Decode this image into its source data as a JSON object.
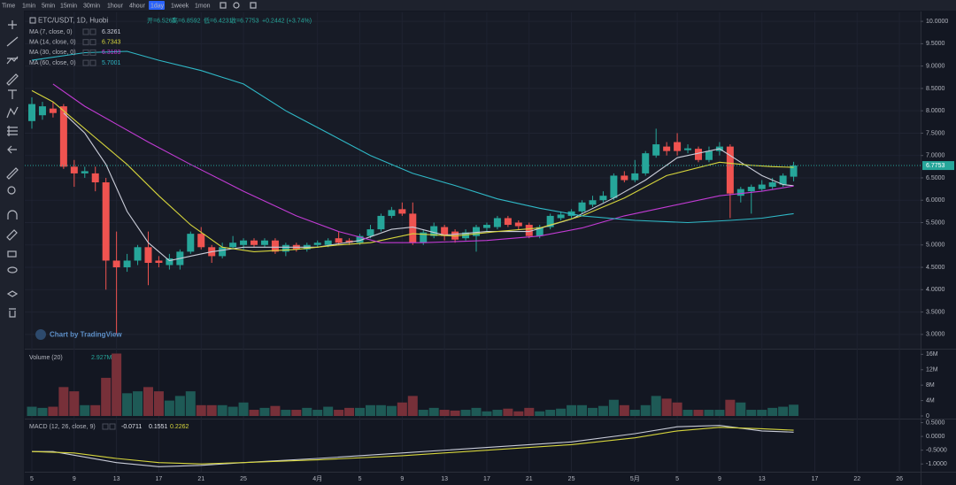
{
  "toolbar": {
    "intervals": [
      "Time",
      "1min",
      "5min",
      "15min",
      "30min",
      "1hour",
      "4hour",
      "1day",
      "1week",
      "1mon"
    ],
    "active": "1day"
  },
  "chart_data": [
    {
      "type": "candlestick",
      "title": "ETC/USDT, 1D, Huobi",
      "ohlc_labels": [
        "开=6.5265",
        "高=6.8592",
        "低=6.4231",
        "收=6.7753"
      ],
      "change_label": "+0.2442 (+3.74%)",
      "watermark": "Chart by TradingView",
      "up_color": "#26a69a",
      "down_color": "#ef5350",
      "open": [
        7.77,
        7.9,
        8.05,
        8.1,
        6.75,
        6.6,
        6.6,
        6.4,
        4.65,
        4.5,
        4.65,
        4.95,
        4.65,
        4.55,
        4.55,
        4.85,
        5.25,
        4.95,
        4.75,
        4.95,
        5.0,
        5.1,
        5.0,
        5.1,
        4.85,
        5.0,
        4.9,
        5.0,
        5.0,
        5.15,
        5.1,
        5.05,
        5.2,
        5.35,
        5.65,
        5.8,
        5.7,
        5.05,
        5.2,
        5.4,
        5.3,
        5.15,
        5.2,
        5.38,
        5.4,
        5.6,
        5.5,
        5.45,
        5.2,
        5.4,
        5.6,
        5.65,
        5.75,
        5.9,
        6.0,
        6.05,
        6.55,
        6.45,
        6.6,
        7.0,
        7.2,
        7.3,
        7.12,
        7.15,
        6.9,
        7.1,
        7.2,
        6.1,
        6.2,
        6.25,
        6.3,
        6.35,
        6.5265
      ],
      "high": [
        8.3,
        8.2,
        8.2,
        8.15,
        6.9,
        6.75,
        6.75,
        6.5,
        5.3,
        4.8,
        5.0,
        5.3,
        4.75,
        4.8,
        4.9,
        5.3,
        5.4,
        5.0,
        5.05,
        5.2,
        5.15,
        5.15,
        5.15,
        5.15,
        5.05,
        5.05,
        5.05,
        5.1,
        5.15,
        5.3,
        5.15,
        5.25,
        5.45,
        5.7,
        5.85,
        5.95,
        5.95,
        5.35,
        5.5,
        5.45,
        5.35,
        5.35,
        5.45,
        5.5,
        5.65,
        5.65,
        5.55,
        5.5,
        5.45,
        5.7,
        5.75,
        5.8,
        6.0,
        6.1,
        6.2,
        6.6,
        6.65,
        6.9,
        7.1,
        7.6,
        7.3,
        7.5,
        7.25,
        7.2,
        7.2,
        7.3,
        7.25,
        6.3,
        6.35,
        6.45,
        6.5,
        6.6,
        6.8592
      ],
      "low": [
        7.6,
        7.8,
        7.85,
        6.7,
        6.3,
        6.5,
        6.2,
        4.0,
        3.0,
        4.4,
        4.55,
        4.1,
        4.5,
        4.45,
        4.45,
        4.8,
        4.9,
        4.6,
        4.7,
        4.9,
        4.9,
        4.95,
        4.95,
        4.8,
        4.75,
        4.85,
        4.85,
        4.95,
        4.95,
        5.0,
        5.0,
        5.0,
        5.15,
        5.3,
        5.6,
        5.65,
        5.0,
        5.0,
        5.15,
        5.1,
        5.05,
        5.1,
        4.85,
        5.3,
        5.35,
        5.4,
        5.35,
        5.15,
        5.15,
        5.35,
        5.55,
        5.6,
        5.7,
        5.85,
        5.95,
        6.0,
        6.4,
        6.4,
        6.55,
        6.95,
        7.0,
        7.0,
        7.05,
        6.85,
        6.85,
        7.0,
        5.6,
        5.95,
        5.7,
        6.2,
        6.25,
        6.3,
        6.4231
      ],
      "close": [
        8.15,
        8.1,
        7.95,
        6.75,
        6.6,
        6.65,
        6.4,
        4.65,
        4.5,
        4.65,
        4.95,
        4.6,
        4.6,
        4.7,
        4.85,
        5.25,
        4.95,
        4.75,
        4.95,
        5.05,
        5.1,
        5.0,
        5.1,
        4.85,
        5.0,
        4.9,
        5.0,
        5.05,
        5.1,
        5.05,
        5.05,
        5.2,
        5.35,
        5.65,
        5.78,
        5.7,
        5.05,
        5.28,
        5.42,
        5.2,
        5.12,
        5.28,
        5.4,
        5.45,
        5.6,
        5.45,
        5.42,
        5.2,
        5.4,
        5.65,
        5.68,
        5.75,
        5.95,
        6.0,
        6.1,
        6.55,
        6.45,
        6.6,
        7.05,
        7.25,
        7.1,
        7.1,
        7.16,
        6.9,
        7.1,
        7.2,
        6.15,
        6.25,
        6.3,
        6.35,
        6.4,
        6.55,
        6.7753
      ],
      "ylim": [
        2.7,
        10.2
      ],
      "yticks": [
        {
          "value": 10,
          "label": "10.0000"
        },
        {
          "value": 9.5,
          "label": "9.5000"
        },
        {
          "value": 9,
          "label": "9.0000"
        },
        {
          "value": 8.5,
          "label": "8.5000"
        },
        {
          "value": 8,
          "label": "8.0000"
        },
        {
          "value": 7.5,
          "label": "7.5000"
        },
        {
          "value": 7,
          "label": "7.0000"
        },
        {
          "value": 6.5,
          "label": "6.5000"
        },
        {
          "value": 6,
          "label": "6.0000"
        },
        {
          "value": 5.5,
          "label": "5.5000"
        },
        {
          "value": 5,
          "label": "5.0000"
        },
        {
          "value": 4.5,
          "label": "4.5000"
        },
        {
          "value": 4,
          "label": "4.0000"
        },
        {
          "value": 3.5,
          "label": "3.5000"
        },
        {
          "value": 3,
          "label": "3.0000"
        }
      ],
      "xlim": [
        -0.67,
        84
      ],
      "xticks": [
        {
          "value": 0,
          "label": "5"
        },
        {
          "value": 4,
          "label": "9"
        },
        {
          "value": 8,
          "label": "13"
        },
        {
          "value": 12,
          "label": "17"
        },
        {
          "value": 16,
          "label": "21"
        },
        {
          "value": 20,
          "label": "25"
        },
        {
          "value": 27,
          "label": "4月"
        },
        {
          "value": 31,
          "label": "5"
        },
        {
          "value": 35,
          "label": "9"
        },
        {
          "value": 39,
          "label": "13"
        },
        {
          "value": 43,
          "label": "17"
        },
        {
          "value": 47,
          "label": "21"
        },
        {
          "value": 51,
          "label": "25"
        },
        {
          "value": 57,
          "label": "5月"
        },
        {
          "value": 61,
          "label": "5"
        },
        {
          "value": 65,
          "label": "9"
        },
        {
          "value": 69,
          "label": "13"
        },
        {
          "value": 74,
          "label": "17"
        },
        {
          "value": 78,
          "label": "22"
        },
        {
          "value": 82,
          "label": "26"
        }
      ],
      "grid": true,
      "ma": [
        {
          "name": "MA (7, close, 0)",
          "color": "#c9ccd8",
          "x": [
            3,
            5,
            7,
            9,
            11,
            13,
            15,
            17,
            20,
            23,
            27,
            31,
            34,
            36,
            39,
            43,
            47,
            51,
            55,
            58,
            61,
            65,
            67,
            69,
            71,
            72
          ],
          "values": [
            7.95,
            7.5,
            6.8,
            5.75,
            5.05,
            4.65,
            4.75,
            4.85,
            4.95,
            4.95,
            4.95,
            5.1,
            5.35,
            5.4,
            5.22,
            5.3,
            5.3,
            5.58,
            6.05,
            6.45,
            6.95,
            7.15,
            6.85,
            6.55,
            6.35,
            6.3261
          ]
        },
        {
          "name": "MA (14, close, 0)",
          "color": "#d6d53c",
          "x": [
            0,
            2,
            4,
            6,
            9,
            12,
            15,
            18,
            21,
            25,
            29,
            32,
            36,
            40,
            44,
            48,
            52,
            56,
            60,
            65,
            68,
            70,
            72
          ],
          "values": [
            8.45,
            8.2,
            7.8,
            7.4,
            6.8,
            6.1,
            5.45,
            4.95,
            4.85,
            4.9,
            5.0,
            5.05,
            5.25,
            5.2,
            5.3,
            5.38,
            5.65,
            6.05,
            6.55,
            6.85,
            6.78,
            6.75,
            6.7343
          ]
        },
        {
          "name": "MA (30, close, 0)",
          "color": "#c23bd4",
          "x": [
            2,
            5,
            8,
            11,
            15,
            20,
            25,
            29,
            33,
            37,
            43,
            48,
            52,
            56,
            60,
            65,
            69,
            72
          ],
          "values": [
            8.6,
            8.1,
            7.7,
            7.3,
            6.8,
            6.2,
            5.65,
            5.3,
            5.05,
            5.05,
            5.1,
            5.2,
            5.38,
            5.65,
            5.85,
            6.1,
            6.2,
            6.3183
          ]
        },
        {
          "name": "MA (60, close, 0)",
          "color": "#2fb8c6",
          "x": [
            0,
            5,
            9,
            12,
            16,
            20,
            24,
            28,
            32,
            36,
            40,
            44,
            48,
            52,
            57,
            62,
            66,
            69,
            72
          ],
          "values": [
            9.13,
            9.3,
            9.33,
            9.13,
            8.9,
            8.6,
            8.0,
            7.5,
            7.0,
            6.6,
            6.33,
            6.03,
            5.82,
            5.65,
            5.55,
            5.5,
            5.55,
            5.6,
            5.7001
          ]
        }
      ]
    },
    {
      "type": "bar",
      "title": "Volume (20)",
      "legend_value": "2.927M",
      "up_color": "#1e5a56",
      "down_color": "#773039",
      "values": [
        2.4,
        2.1,
        2.4,
        7.5,
        6.4,
        2.8,
        2.8,
        9.9,
        16.2,
        5.9,
        6.4,
        7.5,
        6.4,
        4.0,
        5.2,
        6.4,
        2.8,
        2.8,
        2.8,
        2.4,
        3.5,
        1.6,
        2.1,
        2.6,
        1.6,
        1.6,
        2.1,
        1.6,
        2.4,
        1.6,
        2.1,
        2.1,
        2.8,
        2.8,
        2.6,
        3.5,
        5.2,
        1.6,
        2.1,
        1.6,
        1.4,
        1.6,
        2.1,
        1.2,
        1.6,
        1.9,
        1.2,
        2.1,
        1.2,
        1.6,
        1.9,
        2.8,
        2.8,
        2.1,
        2.6,
        4.2,
        2.8,
        1.6,
        2.8,
        5.2,
        4.5,
        3.5,
        1.6,
        1.6,
        1.6,
        1.6,
        4.2,
        3.5,
        1.6,
        1.6,
        2.1,
        2.4,
        2.927
      ],
      "ylim": [
        0,
        17
      ],
      "yticks": [
        {
          "value": 16,
          "label": "16M"
        },
        {
          "value": 12,
          "label": "12M"
        },
        {
          "value": 8,
          "label": "8M"
        },
        {
          "value": 4,
          "label": "4M"
        },
        0
      ]
    },
    {
      "type": "line",
      "title": "MACD (12, 26, close, 9)",
      "histogram_value": -0.0711,
      "series": [
        {
          "color": "#c9ccd8",
          "x": [
            0,
            2,
            5,
            8,
            12,
            16,
            20,
            27,
            35,
            43,
            51,
            57,
            61,
            65,
            67,
            69,
            72
          ],
          "values": [
            -0.55,
            -0.55,
            -0.75,
            -0.95,
            -1.1,
            -1.05,
            -0.95,
            -0.8,
            -0.6,
            -0.4,
            -0.2,
            0.1,
            0.35,
            0.4,
            0.3,
            0.2,
            0.1551
          ]
        },
        {
          "color": "#d6d53c",
          "x": [
            0,
            4,
            8,
            12,
            16,
            20,
            27,
            35,
            43,
            51,
            57,
            61,
            65,
            69,
            72
          ],
          "values": [
            -0.55,
            -0.6,
            -0.8,
            -0.95,
            -1.0,
            -0.95,
            -0.85,
            -0.7,
            -0.5,
            -0.3,
            -0.05,
            0.2,
            0.33,
            0.28,
            0.2262
          ]
        }
      ],
      "ylim": [
        -1.25,
        0.55
      ],
      "yticks": [
        {
          "value": 0.5,
          "label": "0.5000"
        },
        {
          "value": 0,
          "label": "0.0000"
        },
        {
          "value": -0.5,
          "label": "-0.5000"
        },
        {
          "value": -1,
          "label": "-1.0000"
        }
      ]
    }
  ]
}
